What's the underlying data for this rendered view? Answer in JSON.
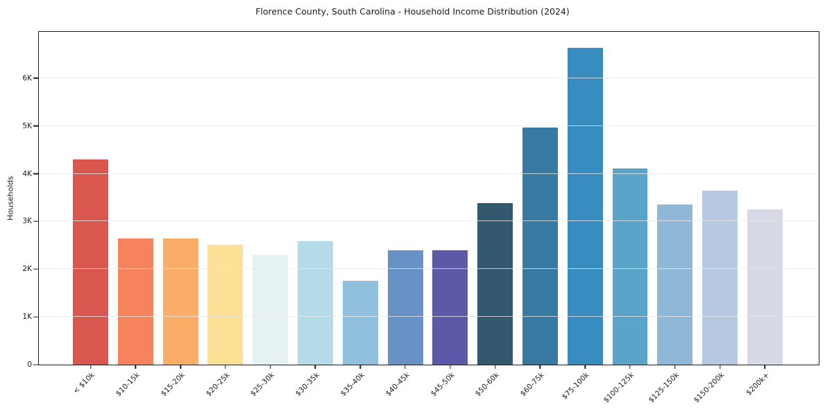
{
  "chart_data": {
    "type": "bar",
    "title": "Florence County, South Carolina - Household Income Distribution (2024)",
    "xlabel": "",
    "ylabel": "Households",
    "categories": [
      "< $10k",
      "$10-15k",
      "$15-20k",
      "$20-25k",
      "$25-30k",
      "$30-35k",
      "$35-40k",
      "$40-45k",
      "$45-50k",
      "$50-60k",
      "$60-75k",
      "$75-100k",
      "$100-125k",
      "$125-150k",
      "$150-200k",
      "$200k+"
    ],
    "values": [
      4300,
      2640,
      2640,
      2510,
      2300,
      2580,
      1760,
      2400,
      2400,
      3390,
      4960,
      6630,
      4110,
      3350,
      3640,
      3250
    ],
    "bar_colors": [
      "#d9574f",
      "#f5845e",
      "#f9ad66",
      "#fce095",
      "#e5f1f2",
      "#b6dbe8",
      "#90c0dd",
      "#6892c5",
      "#5b59a8",
      "#34586d",
      "#3879a1",
      "#398cbf",
      "#5ba4c9",
      "#91b7d7",
      "#b7c8e1",
      "#d8d9e6"
    ],
    "ylim": [
      0,
      6970
    ],
    "ytick_values": [
      0,
      1000,
      2000,
      3000,
      4000,
      5000,
      6000
    ],
    "ytick_labels": [
      "0",
      "1K",
      "2K",
      "3K",
      "4K",
      "5K",
      "6K"
    ],
    "grid": "horizontal",
    "grid_color": "#e9e9e9",
    "spine_color": "#1a1a1a",
    "text_color": "#1a1a1a",
    "background": "#ffffff",
    "legend": "none"
  }
}
